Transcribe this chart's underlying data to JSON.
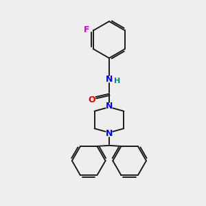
{
  "bg_color": "#eeeeee",
  "bond_color": "#1a1a1a",
  "N_color": "#0000ee",
  "O_color": "#dd0000",
  "F_color": "#cc00cc",
  "H_color": "#008888",
  "line_width": 1.4,
  "figsize": [
    3.0,
    3.0
  ],
  "dpi": 100,
  "xlim": [
    0,
    10
  ],
  "ylim": [
    0,
    10
  ]
}
